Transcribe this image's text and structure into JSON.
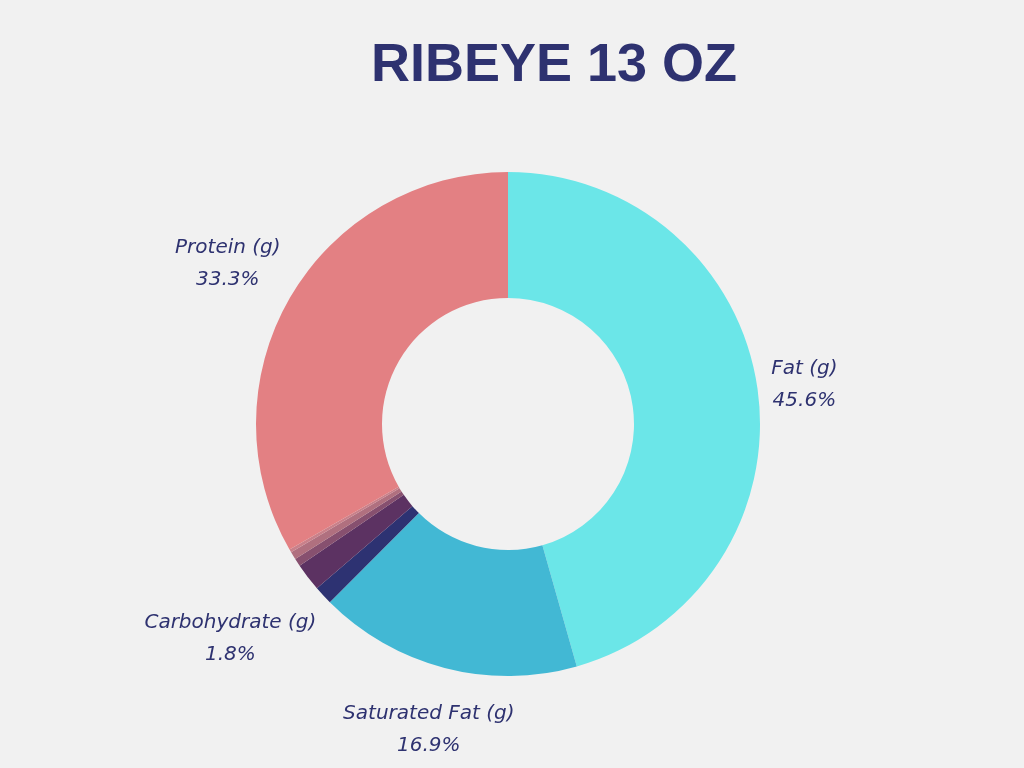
{
  "chart_data": {
    "type": "donut",
    "title": "RIBEYE 13 OZ",
    "categories": [
      "Fat (g)",
      "Saturated Fat (g)",
      null,
      "Carbohydrate (g)",
      null,
      null,
      null,
      "Protein (g)"
    ],
    "values": [
      45.6,
      16.9,
      1.2,
      1.8,
      0.5,
      0.5,
      0.2,
      33.3
    ],
    "colors": [
      "#6be6e8",
      "#42b8d4",
      "#2d3272",
      "#5c3262",
      "#87506f",
      "#b0707f",
      "#c9808a",
      "#e38083"
    ],
    "value_labels": [
      "45.6%",
      "16.9%",
      null,
      "1.8%",
      null,
      null,
      null,
      "33.3%"
    ]
  }
}
